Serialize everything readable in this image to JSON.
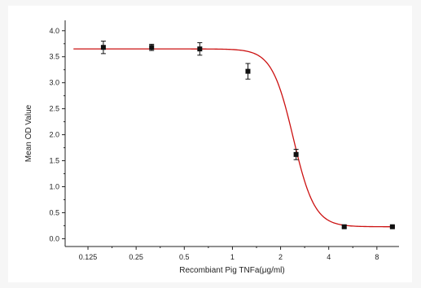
{
  "chart_data": {
    "type": "scatter",
    "xlabel": "Recombiant Pig TNFa(μg/ml)",
    "ylabel": "Mean OD Value",
    "x_scale": "log2",
    "xlim": [
      0.09,
      11
    ],
    "ylim": [
      -0.15,
      4.2
    ],
    "x_ticks": [
      0.125,
      0.25,
      0.5,
      1,
      2,
      4,
      8
    ],
    "x_tick_labels": [
      "0.125",
      "0.25",
      "0.5",
      "1",
      "2",
      "4",
      "8"
    ],
    "y_ticks": [
      0.0,
      0.5,
      1.0,
      1.5,
      2.0,
      2.5,
      3.0,
      3.5,
      4.0
    ],
    "y_tick_labels": [
      "0.0",
      "0.5",
      "1.0",
      "1.5",
      "2.0",
      "2.5",
      "3.0",
      "3.5",
      "4.0"
    ],
    "series": [
      {
        "x": [
          0.156,
          0.3125,
          0.625,
          1.25,
          2.5,
          5,
          10
        ],
        "y": [
          3.68,
          3.68,
          3.65,
          3.22,
          1.62,
          0.23,
          0.23
        ],
        "error": [
          0.12,
          0.06,
          0.12,
          0.15,
          0.1,
          0.02,
          0.02
        ]
      }
    ],
    "fit_curve": {
      "type": "sigmoid",
      "top": 3.65,
      "bottom": 0.23,
      "ec50": 2.4,
      "hill": 6.5,
      "color": "#cc1111"
    },
    "marker_color": "#111111",
    "grid": false,
    "legend": "none"
  }
}
